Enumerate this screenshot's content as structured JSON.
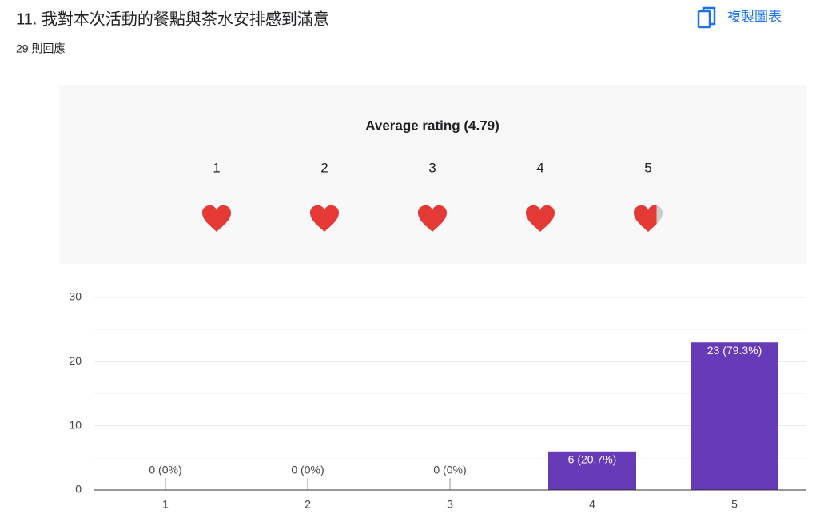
{
  "header": {
    "title": "11. 我對本次活動的餐點與茶水安排感到滿意",
    "responses": "29 則回應",
    "copy_button": "複製圖表"
  },
  "rating": {
    "title": "Average rating (4.79)",
    "average": 4.79,
    "levels": [
      "1",
      "2",
      "3",
      "4",
      "5"
    ],
    "color": "#e53935"
  },
  "chart_data": {
    "type": "bar",
    "categories": [
      "1",
      "2",
      "3",
      "4",
      "5"
    ],
    "values": [
      0,
      0,
      0,
      6,
      23
    ],
    "value_labels": [
      "0 (0%)",
      "0 (0%)",
      "0 (0%)",
      "6 (20.7%)",
      "23 (79.3%)"
    ],
    "color": "#673ab7",
    "ylim": [
      0,
      30
    ],
    "yticks": [
      0,
      10,
      20,
      30
    ],
    "minor_yticks": [
      5,
      15,
      25
    ],
    "grid": true
  }
}
